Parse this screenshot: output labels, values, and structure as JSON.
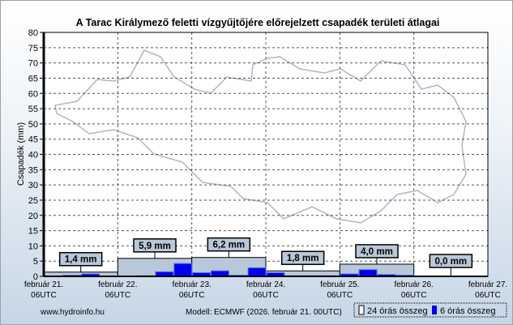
{
  "chart_data": {
    "type": "bar",
    "title": "A Tarac Királymező feletti vízgyűjtőjére előrejelzett csapadék területi átlagai",
    "ylabel": "Csapadék (mm)",
    "xlabel": "",
    "ylim": [
      0,
      80
    ],
    "yticks": [
      0,
      5,
      10,
      15,
      20,
      25,
      30,
      35,
      40,
      45,
      50,
      55,
      60,
      65,
      70,
      75,
      80
    ],
    "grid": true,
    "xticks": [
      {
        "day": "február 21.",
        "time": "06UTC"
      },
      {
        "day": "február 22.",
        "time": "06UTC"
      },
      {
        "day": "február 23.",
        "time": "06UTC"
      },
      {
        "day": "február 24.",
        "time": "06UTC"
      },
      {
        "day": "február 25.",
        "time": "06UTC"
      },
      {
        "day": "február 26.",
        "time": "06UTC"
      },
      {
        "day": "február 27.",
        "time": "06UTC"
      }
    ],
    "series": [
      {
        "name": "24 órás összeg",
        "color": "#b8c8d8",
        "values": [
          1.4,
          5.9,
          6.2,
          1.8,
          4.0,
          0.0
        ],
        "labels": [
          "1,4 mm",
          "5,9 mm",
          "6,2 mm",
          "1,8 mm",
          "4,0 mm",
          "0,0 mm"
        ]
      },
      {
        "name": "6 órás összeg",
        "color": "#0000ee",
        "values": [
          0.1,
          0.4,
          0.8,
          0.1,
          0,
          0.2,
          1.5,
          4.2,
          1.2,
          1.8,
          0.4,
          2.8,
          1.2,
          0.2,
          0.2,
          0.2,
          0.8,
          2.2,
          0.6,
          0.4,
          0,
          0,
          0,
          0
        ]
      }
    ],
    "legend": "bottom-right"
  },
  "footer": {
    "source": "www.hydroinfo.hu",
    "model": "Modell: ECMWF (2026. február 21. 00UTC)"
  }
}
